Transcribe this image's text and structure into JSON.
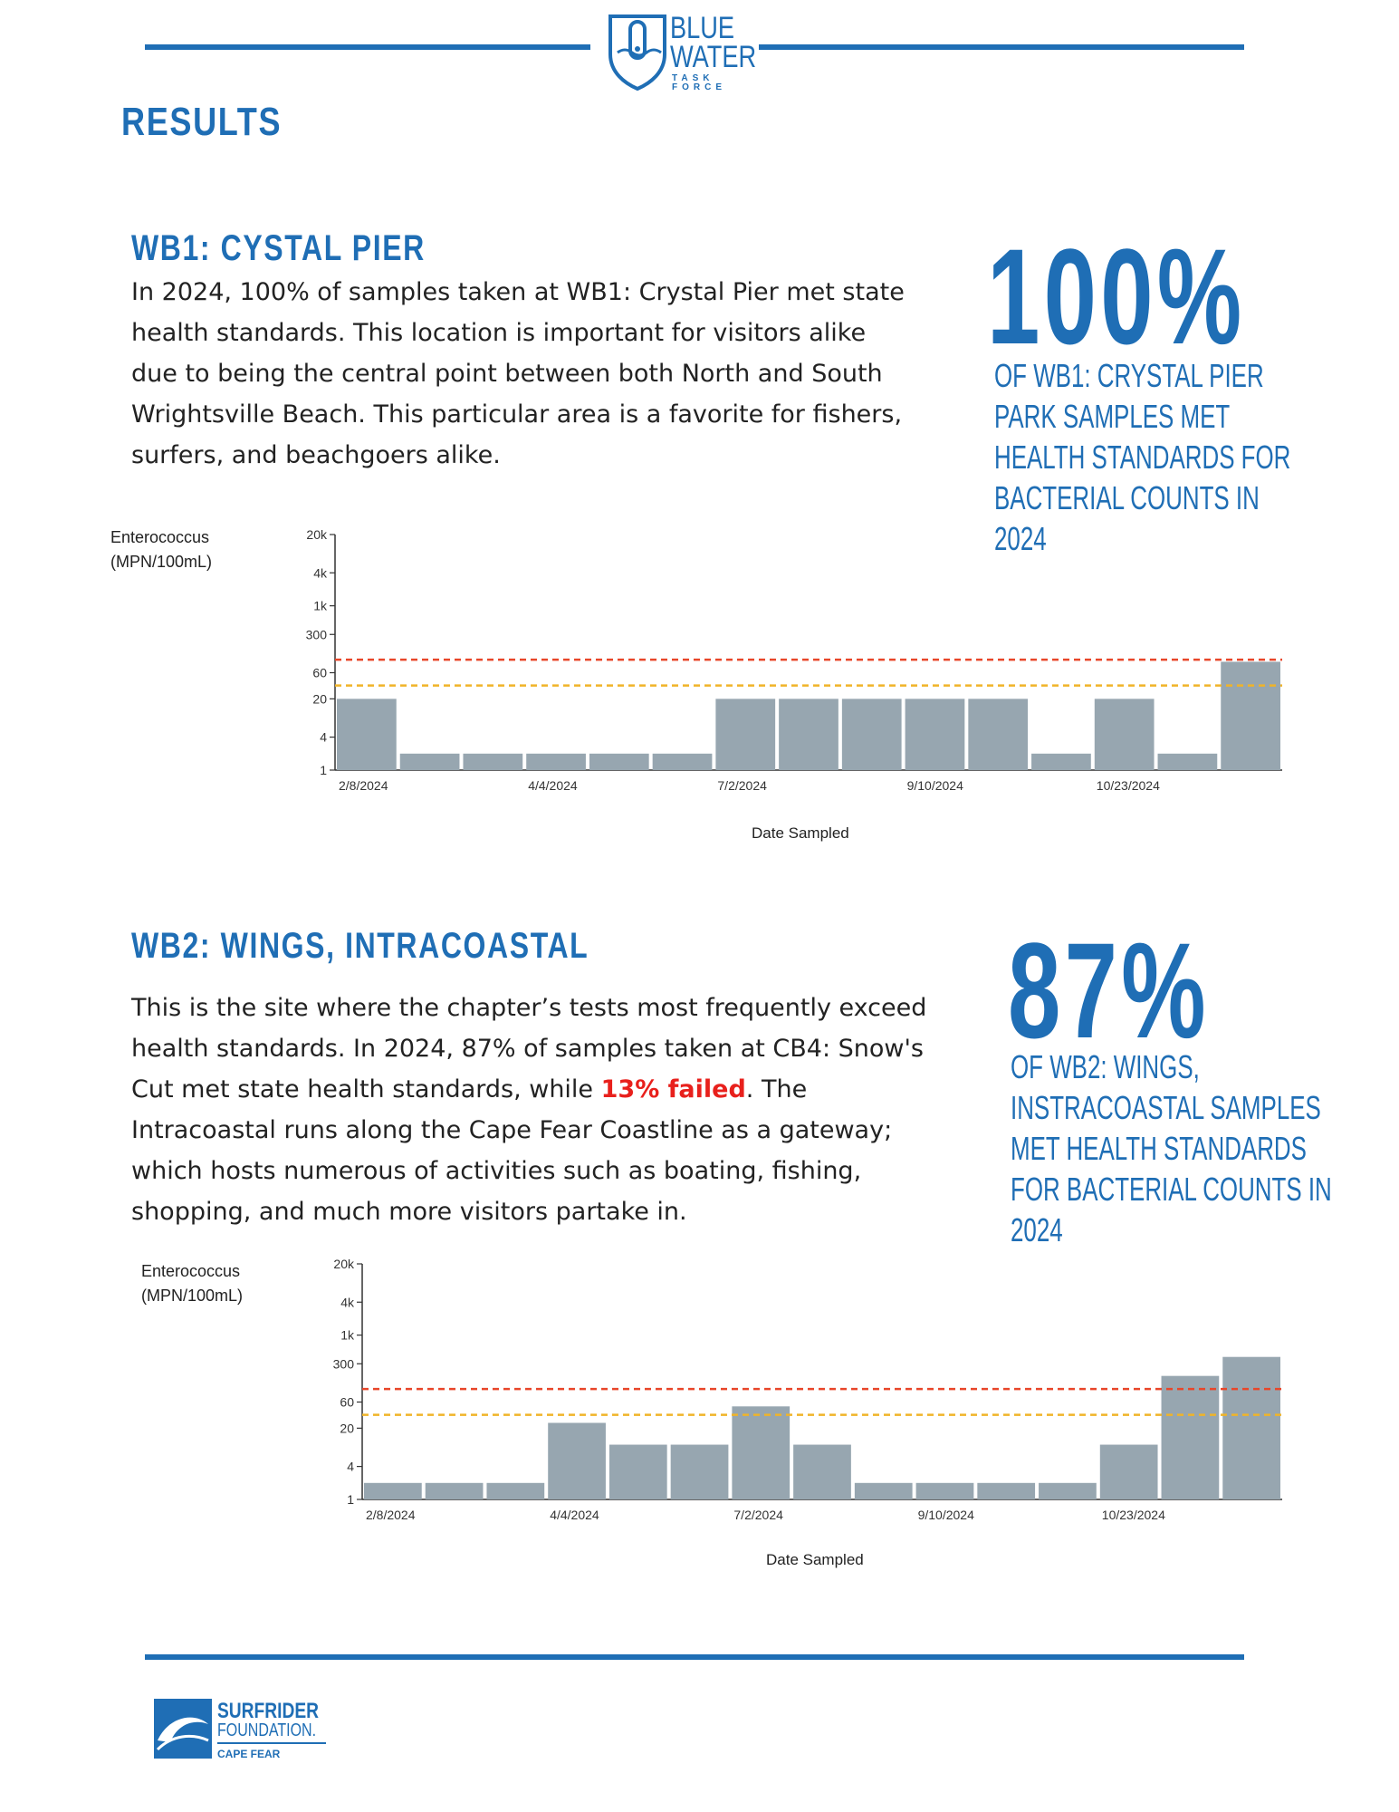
{
  "header": {
    "logo_line1": "BLUE",
    "logo_line2": "WATER",
    "logo_line3": "TASK FORCE",
    "section_title": "RESULTS"
  },
  "sites": [
    {
      "title": "WB1: CYSTAL PIER",
      "paragraph": "In 2024, 100% of samples taken at WB1: Crystal Pier met state health standards. This location is important for visitors alike due to being the central point between both North and South Wrightsville Beach. This particular area is a favorite for fishers, surfers, and beachgoers alike.",
      "stat": "100%",
      "stat_lines": [
        "OF WB1: CRYSTAL PIER",
        "PARK SAMPLES MET",
        "HEALTH STANDARDS FOR",
        "BACTERIAL COUNTS IN",
        "2024"
      ]
    },
    {
      "title": "WB2: WINGS, INTRACOASTAL",
      "paragraph_before": "This is the site where the chapter’s tests most frequently exceed health standards. In 2024, 87% of samples taken at CB4: Snow's Cut met state health standards, while ",
      "paragraph_highlight": "13% failed",
      "paragraph_after": ". The Intracoastal runs along the Cape Fear Coastline as a gateway; which hosts numerous of activities such as boating, fishing, shopping, and much more visitors partake in.",
      "stat": "87%",
      "stat_lines": [
        "OF WB2: WINGS,",
        "INSTRACOASTAL SAMPLES",
        "MET HEALTH STANDARDS",
        "FOR BACTERIAL COUNTS IN",
        "2024"
      ]
    }
  ],
  "footer": {
    "logo_line1": "SURFRIDER",
    "logo_line2": "FOUNDATION.",
    "logo_line3": "CAPE FEAR"
  },
  "colors": {
    "accent": "#1f6eb5",
    "bar": "#97a6b0",
    "threshold_high": "#e8462a",
    "threshold_low": "#f0b429",
    "failed": "#e8201c"
  },
  "chart_data": [
    {
      "type": "bar",
      "ylabel": "Enterococcus\n(MPN/100mL)",
      "ylabel_lines": [
        "Enterococcus",
        "(MPN/100mL)"
      ],
      "xlabel": "Date Sampled",
      "y_scale": "log",
      "yticks": [
        1,
        4,
        20,
        60,
        300,
        1000,
        4000,
        20000
      ],
      "ytick_labels": [
        "1",
        "4",
        "20",
        "60",
        "300",
        "1k",
        "4k",
        "20k"
      ],
      "xtick_labels": [
        "2/8/2024",
        "4/4/2024",
        "7/2/2024",
        "9/10/2024",
        "10/23/2024"
      ],
      "xtick_bar_index": [
        0,
        3,
        6,
        9,
        12
      ],
      "values": [
        20,
        2,
        2,
        2,
        2,
        2,
        20,
        20,
        20,
        20,
        20,
        2,
        20,
        2,
        95
      ],
      "thresholds": [
        104,
        35
      ]
    },
    {
      "type": "bar",
      "ylabel": "Enterococcus\n(MPN/100mL)",
      "ylabel_lines": [
        "Enterococcus",
        "(MPN/100mL)"
      ],
      "xlabel": "Date Sampled",
      "y_scale": "log",
      "yticks": [
        1,
        4,
        20,
        60,
        300,
        1000,
        4000,
        20000
      ],
      "ytick_labels": [
        "1",
        "4",
        "20",
        "60",
        "300",
        "1k",
        "4k",
        "20k"
      ],
      "xtick_labels": [
        "2/8/2024",
        "4/4/2024",
        "7/2/2024",
        "9/10/2024",
        "10/23/2024"
      ],
      "xtick_bar_index": [
        0,
        3,
        6,
        9,
        12
      ],
      "values": [
        2,
        2,
        2,
        25,
        10,
        10,
        50,
        10,
        2,
        2,
        2,
        2,
        10,
        180,
        400
      ],
      "thresholds": [
        104,
        35
      ]
    }
  ]
}
